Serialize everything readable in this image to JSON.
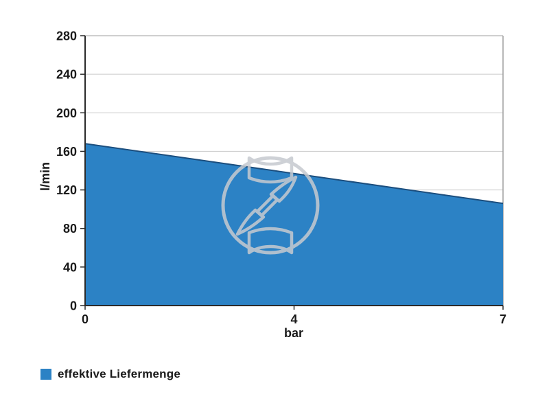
{
  "chart_data": {
    "type": "area",
    "title": "",
    "xlabel": "bar",
    "ylabel": "l/min",
    "categories": [
      "0",
      "4",
      "7"
    ],
    "x": [
      0,
      4,
      7
    ],
    "series": [
      {
        "name": "effektive Liefermenge",
        "values": [
          168,
          137,
          106
        ]
      }
    ],
    "yticks": [
      0,
      40,
      80,
      120,
      160,
      200,
      240,
      280
    ],
    "ylim": [
      0,
      280
    ],
    "grid": "horizontal-only",
    "x_ticks_equally_spaced": true,
    "legend_position": "bottom-left",
    "colors": {
      "area_fill": "#2c82c5",
      "area_line": "#1b4e7e",
      "text": "#1a1a1a",
      "gridline": "#c9c9c9",
      "plot_border": "#9f9f9f",
      "axis_line": "#2a2a2a",
      "watermark": "#c6cad0"
    }
  },
  "legend": {
    "items": [
      {
        "label": "effektive Liefermenge",
        "swatch_color": "#2c82c5"
      }
    ]
  },
  "watermark": {
    "name": "circular-tool-logo"
  }
}
